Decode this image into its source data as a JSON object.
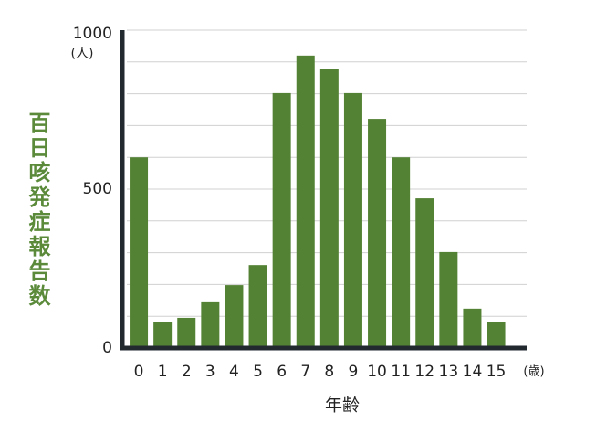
{
  "chart_data": {
    "type": "bar",
    "ylabel": "百日咳発症報告数",
    "xlabel": "年齢",
    "y_unit": "(人)",
    "x_unit": "(歳)",
    "categories": [
      "0",
      "1",
      "2",
      "3",
      "4",
      "5",
      "6",
      "7",
      "8",
      "9",
      "10",
      "11",
      "12",
      "13",
      "14",
      "15"
    ],
    "values": [
      600,
      83,
      95,
      144,
      198,
      261,
      802,
      920,
      879,
      802,
      721,
      600,
      471,
      302,
      124,
      83
    ],
    "color": "#548235",
    "label_color": "#5a8a3a",
    "ylim": [
      0,
      1000
    ],
    "yticks": [
      0,
      500,
      1000
    ],
    "ygrid": [
      100,
      200,
      300,
      400,
      500,
      600,
      700,
      800,
      900,
      1000
    ]
  }
}
